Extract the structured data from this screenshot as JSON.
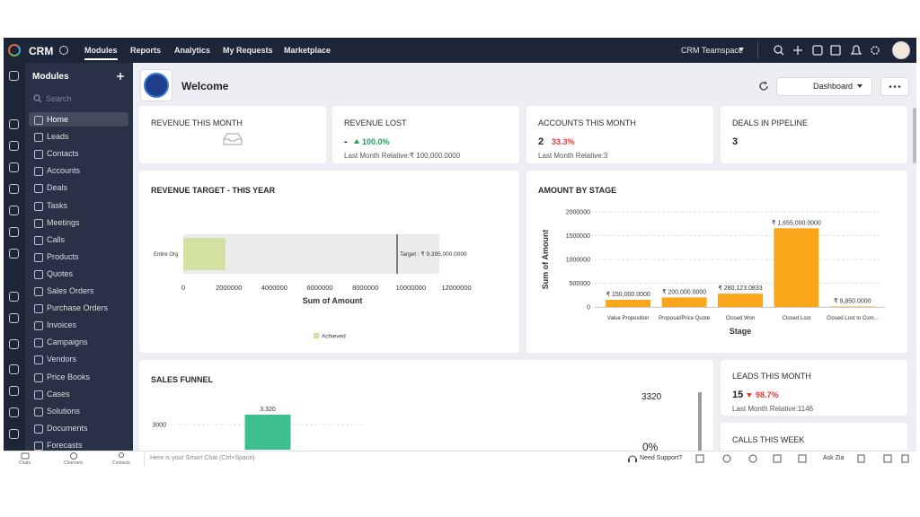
{
  "topnav": {
    "brand": "CRM",
    "tabs": [
      "Modules",
      "Reports",
      "Analytics",
      "My Requests",
      "Marketplace"
    ],
    "teamspace": "CRM Teamspace"
  },
  "sidebar": {
    "title": "Modules",
    "search": "Search",
    "items": [
      "Home",
      "Leads",
      "Contacts",
      "Accounts",
      "Deals",
      "Tasks",
      "Meetings",
      "Calls",
      "Products",
      "Quotes",
      "Sales Orders",
      "Purchase Orders",
      "Invoices",
      "Campaigns",
      "Vendors",
      "Price Books",
      "Cases",
      "Solutions",
      "Documents",
      "Forecasts"
    ]
  },
  "header": {
    "title": "Welcome",
    "dashboard": "Dashboard"
  },
  "kpis": [
    {
      "title": "REVENUE THIS MONTH"
    },
    {
      "title": "REVENUE LOST",
      "value": "-",
      "change": "100.0%",
      "note": "Last Month Relative:₹ 100,000.0000"
    },
    {
      "title": "ACCOUNTS THIS MONTH",
      "value": "2",
      "change": "33.3%",
      "note": "Last Month Relative:3"
    },
    {
      "title": "DEALS IN PIPELINE",
      "value": "3"
    }
  ],
  "revenue_target": {
    "title": "REVENUE TARGET - THIS YEAR",
    "chart": {
      "type": "hbar",
      "categories": [
        "Entire Org"
      ],
      "series": [
        {
          "name": "Achieved",
          "color": "#d3e2a0",
          "values": [
            1850000
          ]
        }
      ],
      "target": {
        "value": 9395000,
        "label": "Target : ₹ 9,395,000.0000"
      },
      "gauge_max": 11250000,
      "xlim": [
        0,
        12000000
      ],
      "xticks": [
        0,
        2000000,
        4000000,
        6000000,
        8000000,
        10000000,
        12000000
      ],
      "xlabel": "Sum of Amount"
    }
  },
  "amount_by_stage": {
    "title": "AMOUNT BY STAGE",
    "chart": {
      "type": "bar",
      "categories": [
        "Value Proposition",
        "Proposal/Price Quote",
        "Closed Won",
        "Closed Lost",
        "Closed Lost to Com..."
      ],
      "values": [
        150000,
        200000,
        280123.0833,
        1655000,
        9850
      ],
      "value_labels": [
        "₹ 150,000.0000",
        "₹ 200,000.0000",
        "₹ 280,123.0833",
        "₹ 1,655,000.0000",
        "₹ 9,850.0000"
      ],
      "color": "#f9a61a",
      "ylim": [
        0,
        2000000
      ],
      "yticks": [
        0,
        500000,
        1000000,
        1500000,
        2000000
      ],
      "xlabel": "Stage",
      "ylabel": "Sum of Amount",
      "grid": true
    }
  },
  "sales_funnel": {
    "title": "SALES FUNNEL",
    "chart": {
      "type": "bar",
      "categories": [
        null
      ],
      "values": [
        3320
      ],
      "value_labels": [
        "3,320"
      ],
      "color": "#3dbf8f",
      "ylim": [
        0,
        3650
      ],
      "yticks": [
        3000
      ],
      "grid": true
    },
    "total": "3320",
    "conversion": "0%"
  },
  "leads": {
    "title": "LEADS THIS MONTH",
    "value": "15",
    "change": "98.7%",
    "note": "Last Month Relative:1146"
  },
  "calls": {
    "title": "CALLS THIS WEEK"
  },
  "bottom_bar": {
    "chats": "Chats",
    "channels": "Channels",
    "contacts": "Contacts",
    "smart_chat": "Here is your Smart Chat (Ctrl+Space)",
    "support": "Need Support?",
    "zia": "Ask Zia"
  }
}
